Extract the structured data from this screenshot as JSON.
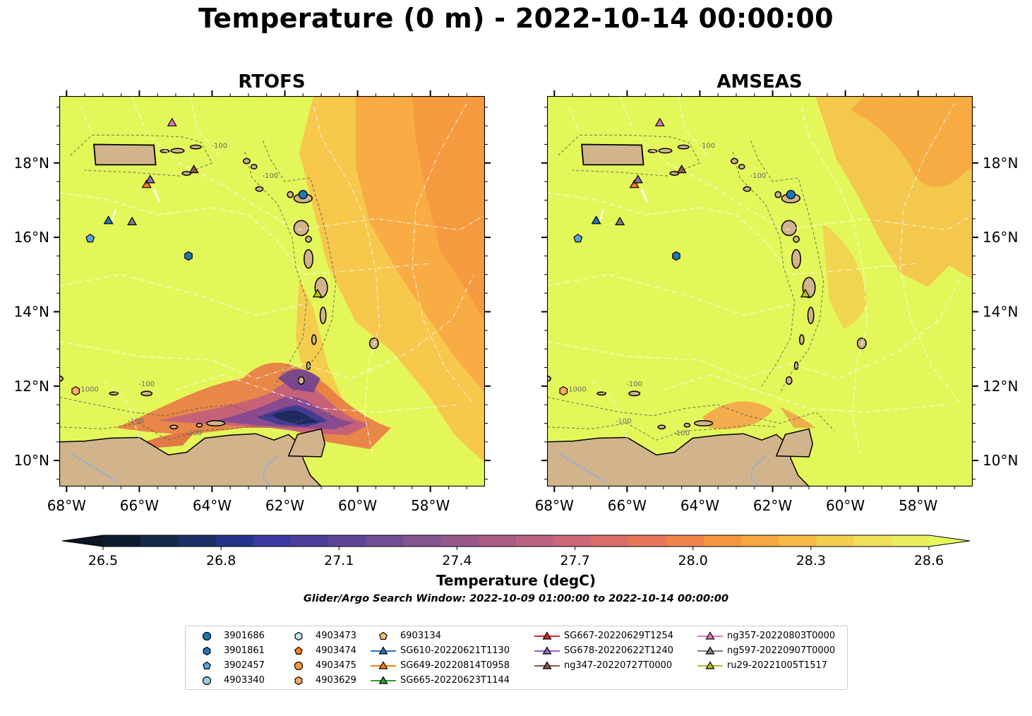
{
  "title": "Temperature (0 m) - 2022-10-14 00:00:00",
  "panels": [
    {
      "title": "RTOFS"
    },
    {
      "title": "AMSEAS"
    }
  ],
  "axes": {
    "x_ticks": [
      "68°W",
      "66°W",
      "64°W",
      "62°W",
      "60°W",
      "58°W"
    ],
    "y_ticks": [
      "10°N",
      "12°N",
      "14°N",
      "16°N",
      "18°N"
    ],
    "contour_labels": [
      "-100",
      "-1000"
    ]
  },
  "colorbar": {
    "label": "Temperature (degC)",
    "ticks": [
      "26.5",
      "26.8",
      "27.1",
      "27.4",
      "27.7",
      "28.0",
      "28.3",
      "28.6"
    ],
    "colormap": "thermal",
    "extend": "both"
  },
  "search_window": "Glider/Argo Search Window: 2022-10-09 01:00:00 to 2022-10-14 00:00:00",
  "legend": [
    {
      "label": "3901686",
      "marker": "circle",
      "color": "#1f77b4"
    },
    {
      "label": "3901861",
      "marker": "hexagon",
      "color": "#1f77b4"
    },
    {
      "label": "3902457",
      "marker": "pentagon",
      "color": "#58a6e0"
    },
    {
      "label": "4903340",
      "marker": "circle",
      "color": "#9ecae1"
    },
    {
      "label": "4903473",
      "marker": "hexagon",
      "color": "#c6e4f5"
    },
    {
      "label": "4903474",
      "marker": "pentagon",
      "color": "#ff7f0e"
    },
    {
      "label": "4903475",
      "marker": "circle",
      "color": "#ff9a3a"
    },
    {
      "label": "4903629",
      "marker": "hexagon",
      "color": "#ffab6a"
    },
    {
      "label": "6903134",
      "marker": "pentagon",
      "color": "#ffbb78"
    },
    {
      "label": "SG610-20220621T1130",
      "marker": "triangle",
      "color": "#1f77b4",
      "line": true
    },
    {
      "label": "SG649-20220814T0958",
      "marker": "triangle",
      "color": "#ff7f0e",
      "line": true
    },
    {
      "label": "SG665-20220623T1144",
      "marker": "triangle",
      "color": "#2ca02c",
      "line": true
    },
    {
      "label": "SG667-20220629T1254",
      "marker": "triangle",
      "color": "#d62728",
      "line": true
    },
    {
      "label": "SG678-20220622T1240",
      "marker": "triangle",
      "color": "#9467bd",
      "line": true
    },
    {
      "label": "ng347-20220727T0000",
      "marker": "triangle",
      "color": "#8c564b",
      "line": true
    },
    {
      "label": "ng357-20220803T0000",
      "marker": "triangle",
      "color": "#e377c2",
      "line": true
    },
    {
      "label": "ng597-20220907T0000",
      "marker": "triangle",
      "color": "#7f7f7f",
      "line": true
    },
    {
      "label": "ru29-20221005T1517",
      "marker": "triangle",
      "color": "#bcbd22",
      "line": true
    }
  ],
  "chart_data": {
    "type": "heatmap",
    "variable": "Temperature",
    "units": "degC",
    "depth": "0 m",
    "time": "2022-10-14 00:00:00",
    "lon_range": [
      -68.2,
      -56.5
    ],
    "lat_range": [
      9.3,
      19.8
    ],
    "color_range": [
      26.5,
      28.6
    ],
    "panels": [
      "RTOFS",
      "AMSEAS"
    ],
    "observations": [
      {
        "label": "3901686",
        "lon": -61.5,
        "lat": 17.15
      },
      {
        "label": "3901861",
        "lon": -64.65,
        "lat": 15.5
      },
      {
        "label": "3902457",
        "lon": -67.35,
        "lat": 15.97
      },
      {
        "label": "4903629",
        "lon": -67.75,
        "lat": 11.87
      },
      {
        "label": "SG610-20220621T1130",
        "lon": -66.85,
        "lat": 16.45
      },
      {
        "label": "SG649-20220814T0958",
        "lon": -65.8,
        "lat": 17.42
      },
      {
        "label": "SG678-20220622T1240",
        "lon": -65.7,
        "lat": 17.55
      },
      {
        "label": "ng347-20220727T0000",
        "lon": -64.5,
        "lat": 17.82
      },
      {
        "label": "ng357-20220803T0000",
        "lon": -65.1,
        "lat": 19.08
      },
      {
        "label": "ng597-20220907T0000",
        "lon": -66.2,
        "lat": 16.42
      },
      {
        "label": "ru29-20221005T1517",
        "lon": -61.1,
        "lat": 14.48
      }
    ]
  }
}
